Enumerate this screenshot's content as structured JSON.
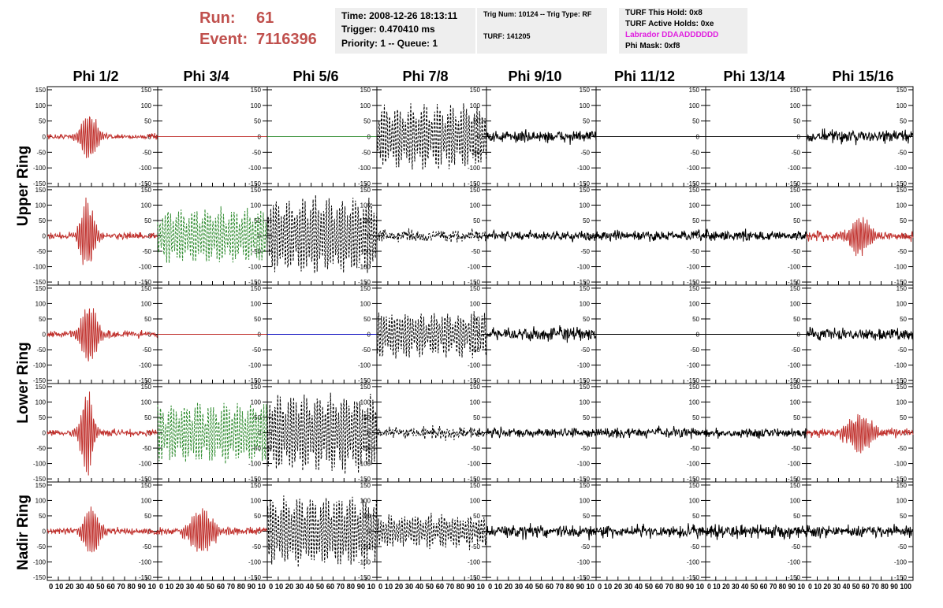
{
  "header": {
    "run_label": "Run:",
    "run_value": "61",
    "event_label": "Event:",
    "event_value": "7116396"
  },
  "info1": {
    "time": "Time: 2008-12-26 18:13:11",
    "trigger": "Trigger: 0.470410 ms",
    "priority": "Priority: 1 -- Queue: 1"
  },
  "info2": {
    "trig": "Trig Num: 10124 -- Trig Type: RF",
    "turf": "TURF: 141205"
  },
  "info3": {
    "this_hold": "TURF This Hold: 0x8",
    "active_holds": "TURF Active Holds: 0xe",
    "labrador": "Labrador DDAADDDDDD",
    "phi_mask": "Phi Mask: 0xf8"
  },
  "colors": {
    "red": "#c0302c",
    "green": "#2e8b2e",
    "blue": "#1010c0",
    "black": "#000000",
    "labrador": "#e020e0",
    "header": "#c0504d"
  },
  "chart_data": {
    "type": "line",
    "phi_labels": [
      "Phi 1/2",
      "Phi 3/4",
      "Phi 5/6",
      "Phi 7/8",
      "Phi 9/10",
      "Phi 11/12",
      "Phi 13/14",
      "Phi 15/16"
    ],
    "ring_labels": [
      "Upper Ring",
      "Lower Ring",
      "Nadir Ring"
    ],
    "xlim": [
      0,
      100
    ],
    "ylim": [
      -160,
      160
    ],
    "yticks": [
      150,
      100,
      50,
      0,
      -50,
      -100,
      -150
    ],
    "xticks": [
      0,
      10,
      20,
      30,
      40,
      50,
      60,
      70,
      80,
      90,
      100
    ],
    "xtick_label_strings": [
      "0 10 20 30 40 50 60 70 80 90 10",
      "0 10 20 30 40 50 60 70 80 90 10",
      "0 10 20 30 40 50 60 70 80 90 10",
      "0 10 20 30 40 50 60 70 80 90 10",
      "0 10 20 30 40 50 60 70 80 90 10",
      "0 10 20 30 40 50 60 70 80 90 10",
      "0 10 20 30 40 50 60 70 80 90 10",
      "0 10 20 30 40 50 60 70 80 90 100"
    ],
    "grid": false,
    "panels": [
      [
        {
          "color": "red",
          "style": "solid",
          "shape": "burst",
          "amp": 85,
          "center": 38,
          "width": 9,
          "noise": 8
        },
        {
          "color": "red",
          "style": "solid",
          "shape": "flat"
        },
        {
          "color": "green",
          "style": "solid",
          "shape": "flat"
        },
        {
          "color": "black",
          "style": "dashed",
          "shape": "osc",
          "amp": 100,
          "noise": 12
        },
        {
          "color": "black",
          "style": "solid",
          "shape": "noise",
          "noise": 18
        },
        {
          "color": "black",
          "style": "solid",
          "shape": "flat"
        },
        {
          "color": "black",
          "style": "solid",
          "shape": "flat"
        },
        {
          "color": "black",
          "style": "solid",
          "shape": "noise",
          "noise": 20
        }
      ],
      [
        {
          "color": "red",
          "style": "solid",
          "shape": "burst",
          "amp": 130,
          "center": 36,
          "width": 8,
          "noise": 10
        },
        {
          "color": "green",
          "style": "dashed",
          "shape": "osc",
          "amp": 85,
          "noise": 10
        },
        {
          "color": "black",
          "style": "dashed",
          "shape": "osc",
          "amp": 120,
          "noise": 15
        },
        {
          "color": "black",
          "style": "dashed",
          "shape": "noise",
          "noise": 18
        },
        {
          "color": "black",
          "style": "solid",
          "shape": "noise",
          "noise": 14
        },
        {
          "color": "black",
          "style": "solid",
          "shape": "noise",
          "noise": 16
        },
        {
          "color": "black",
          "style": "solid",
          "shape": "noise",
          "noise": 16
        },
        {
          "color": "red",
          "style": "solid",
          "shape": "burst",
          "amp": 65,
          "center": 50,
          "width": 12,
          "noise": 14
        }
      ],
      [
        {
          "color": "red",
          "style": "solid",
          "shape": "burst",
          "amp": 110,
          "center": 38,
          "width": 9,
          "noise": 10
        },
        {
          "color": "red",
          "style": "solid",
          "shape": "flat"
        },
        {
          "color": "blue",
          "style": "solid",
          "shape": "flat"
        },
        {
          "color": "black",
          "style": "dashed",
          "shape": "osc",
          "amp": 70,
          "noise": 15
        },
        {
          "color": "black",
          "style": "solid",
          "shape": "noise",
          "noise": 20
        },
        {
          "color": "black",
          "style": "solid",
          "shape": "flat"
        },
        {
          "color": "black",
          "style": "solid",
          "shape": "flat"
        },
        {
          "color": "black",
          "style": "solid",
          "shape": "noise",
          "noise": 18
        }
      ],
      [
        {
          "color": "red",
          "style": "solid",
          "shape": "burst",
          "amp": 150,
          "center": 36,
          "width": 7,
          "noise": 10
        },
        {
          "color": "green",
          "style": "dashed",
          "shape": "osc",
          "amp": 95,
          "noise": 12
        },
        {
          "color": "black",
          "style": "dashed",
          "shape": "osc",
          "amp": 125,
          "noise": 15
        },
        {
          "color": "black",
          "style": "dashed",
          "shape": "noise",
          "noise": 18
        },
        {
          "color": "black",
          "style": "solid",
          "shape": "noise",
          "noise": 14
        },
        {
          "color": "black",
          "style": "solid",
          "shape": "noise",
          "noise": 16
        },
        {
          "color": "black",
          "style": "solid",
          "shape": "noise",
          "noise": 14
        },
        {
          "color": "red",
          "style": "solid",
          "shape": "burst",
          "amp": 70,
          "center": 50,
          "width": 14,
          "noise": 14
        }
      ],
      [
        {
          "color": "red",
          "style": "solid",
          "shape": "burst",
          "amp": 90,
          "center": 40,
          "width": 9,
          "noise": 10
        },
        {
          "color": "red",
          "style": "solid",
          "shape": "burst",
          "amp": 90,
          "center": 40,
          "width": 12,
          "noise": 12
        },
        {
          "color": "black",
          "style": "dashed",
          "shape": "osc",
          "amp": 110,
          "noise": 15
        },
        {
          "color": "black",
          "style": "dashed",
          "shape": "osc",
          "amp": 50,
          "noise": 12
        },
        {
          "color": "black",
          "style": "solid",
          "shape": "noise",
          "noise": 20
        },
        {
          "color": "black",
          "style": "solid",
          "shape": "noise",
          "noise": 20
        },
        {
          "color": "black",
          "style": "solid",
          "shape": "noise",
          "noise": 20
        },
        {
          "color": "black",
          "style": "solid",
          "shape": "noise",
          "noise": 18
        }
      ]
    ]
  }
}
